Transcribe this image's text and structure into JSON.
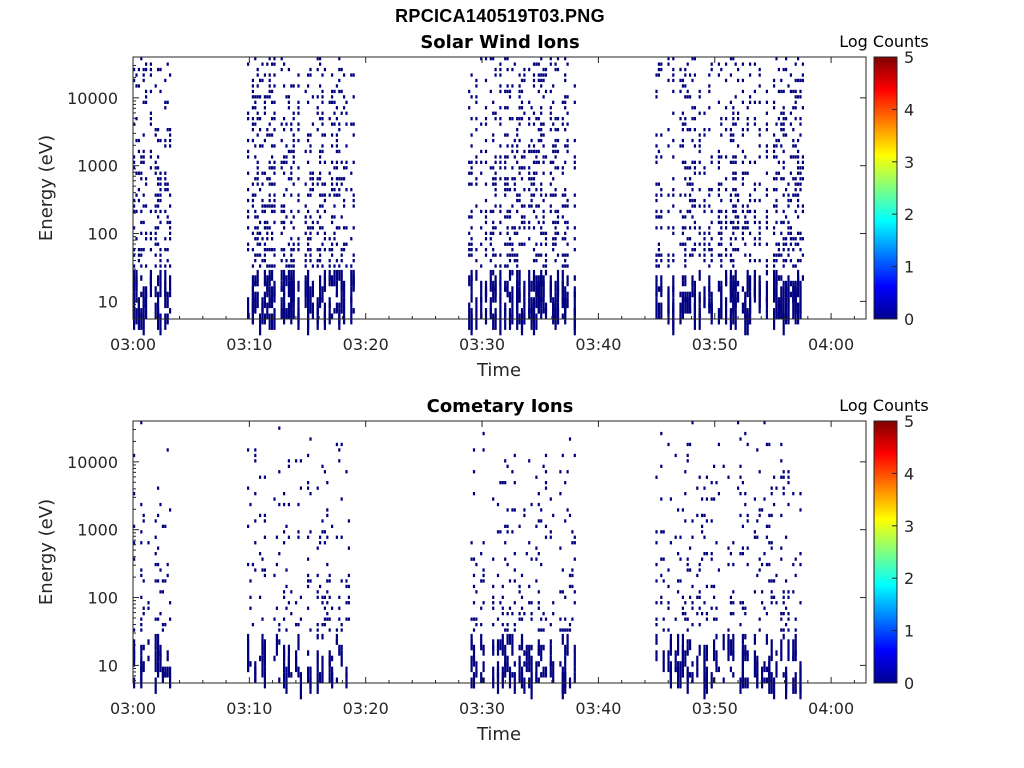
{
  "title": "RPCICA140519T03.PNG",
  "chart_data": [
    {
      "type": "heatmap",
      "title": "Solar Wind Ions",
      "xlabel": "Time",
      "ylabel": "Energy (eV)",
      "x_ticks": [
        "03:00",
        "03:10",
        "03:20",
        "03:30",
        "03:40",
        "03:50",
        "04:00"
      ],
      "y_ticks": [
        "10",
        "100",
        "1000",
        "10000"
      ],
      "y_scale": "log",
      "ylim": [
        5.5,
        40000
      ],
      "xlim_minutes": [
        0,
        63
      ],
      "colorbar": {
        "label": "Log Counts",
        "ticks": [
          "0",
          "1",
          "2",
          "3",
          "4",
          "5"
        ],
        "range": [
          0,
          5
        ],
        "colormap": "jet"
      },
      "grid": false,
      "bursts_minutes": [
        [
          0,
          3.3
        ],
        [
          9.8,
          18.9
        ],
        [
          28.8,
          38.0
        ],
        [
          44.9,
          57.5
        ]
      ],
      "density": {
        "low_energy": 0.5,
        "high_energy": 0.22
      },
      "dominant_level": "0.0"
    },
    {
      "type": "heatmap",
      "title": "Cometary Ions",
      "xlabel": "Time",
      "ylabel": "Energy (eV)",
      "x_ticks": [
        "03:00",
        "03:10",
        "03:20",
        "03:30",
        "03:40",
        "03:50",
        "04:00"
      ],
      "y_ticks": [
        "10",
        "100",
        "1000",
        "10000"
      ],
      "y_scale": "log",
      "ylim": [
        5.5,
        40000
      ],
      "xlim_minutes": [
        0,
        63
      ],
      "colorbar": {
        "label": "Log Counts",
        "ticks": [
          "0",
          "1",
          "2",
          "3",
          "4",
          "5"
        ],
        "range": [
          0,
          5
        ],
        "colormap": "jet"
      },
      "grid": false,
      "bursts_minutes": [
        [
          0,
          3.3
        ],
        [
          9.8,
          18.9
        ],
        [
          28.8,
          38.0
        ],
        [
          44.9,
          57.5
        ]
      ],
      "density": {
        "low_energy": 0.28,
        "high_energy": 0.035
      },
      "dominant_level": "0.0"
    }
  ]
}
